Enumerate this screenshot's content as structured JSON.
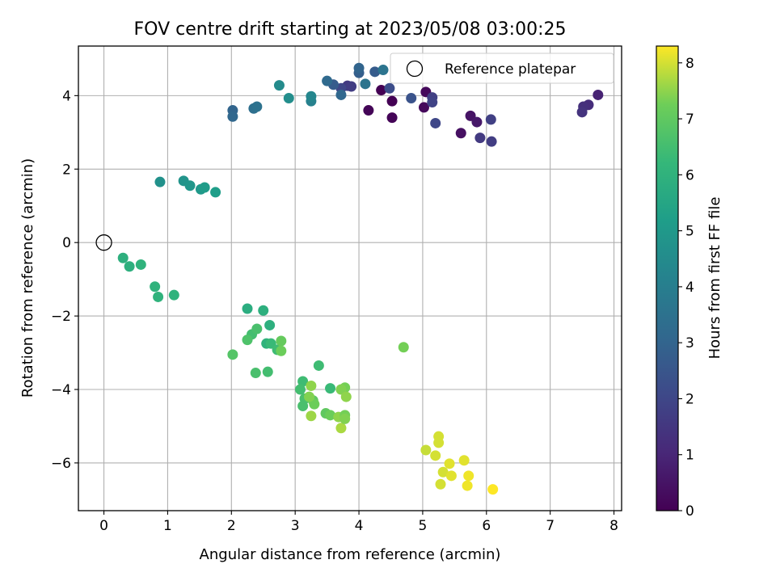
{
  "chart_data": {
    "type": "scatter",
    "title": "FOV centre drift starting at 2023/05/08 03:00:25",
    "xlabel": "Angular distance from reference (arcmin)",
    "ylabel": "Rotation from reference (arcmin)",
    "xlim": [
      -0.4,
      8.12
    ],
    "ylim": [
      -7.3,
      5.35
    ],
    "xticks": [
      0,
      1,
      2,
      3,
      4,
      5,
      6,
      7,
      8
    ],
    "yticks": [
      -6,
      -4,
      -2,
      0,
      2,
      4
    ],
    "grid": true,
    "legend": {
      "placement": "top-right",
      "entries": [
        {
          "label": "Reference platepar",
          "marker": "open-circle"
        }
      ]
    },
    "colorbar": {
      "label": "Hours from first FF file",
      "colormap": "viridis",
      "range": [
        0,
        8.3
      ],
      "ticks": [
        0,
        1,
        2,
        3,
        4,
        5,
        6,
        7,
        8
      ]
    },
    "reference": {
      "x": 0,
      "y": 0
    },
    "points": [
      {
        "x": 4.35,
        "y": 4.15,
        "h": 0.0
      },
      {
        "x": 4.52,
        "y": 3.85,
        "h": 0.0
      },
      {
        "x": 4.15,
        "y": 3.6,
        "h": 0.1
      },
      {
        "x": 4.52,
        "y": 3.4,
        "h": 0.1
      },
      {
        "x": 5.05,
        "y": 4.1,
        "h": 0.2
      },
      {
        "x": 5.02,
        "y": 3.68,
        "h": 0.2
      },
      {
        "x": 5.6,
        "y": 2.98,
        "h": 0.4
      },
      {
        "x": 5.75,
        "y": 3.45,
        "h": 0.5
      },
      {
        "x": 5.85,
        "y": 3.28,
        "h": 0.6
      },
      {
        "x": 7.75,
        "y": 4.02,
        "h": 0.9
      },
      {
        "x": 7.6,
        "y": 3.75,
        "h": 1.2
      },
      {
        "x": 7.52,
        "y": 3.7,
        "h": 1.3
      },
      {
        "x": 7.5,
        "y": 3.55,
        "h": 1.4
      },
      {
        "x": 5.9,
        "y": 2.85,
        "h": 1.6
      },
      {
        "x": 6.08,
        "y": 2.75,
        "h": 1.7
      },
      {
        "x": 6.07,
        "y": 3.35,
        "h": 1.8
      },
      {
        "x": 5.15,
        "y": 3.95,
        "h": 1.8
      },
      {
        "x": 5.15,
        "y": 3.82,
        "h": 1.9
      },
      {
        "x": 5.2,
        "y": 3.25,
        "h": 2.0
      },
      {
        "x": 3.82,
        "y": 4.27,
        "h": 1.6
      },
      {
        "x": 3.88,
        "y": 4.25,
        "h": 1.7
      },
      {
        "x": 3.72,
        "y": 4.2,
        "h": 2.0
      },
      {
        "x": 4.48,
        "y": 4.2,
        "h": 2.2
      },
      {
        "x": 4.82,
        "y": 3.93,
        "h": 2.4
      },
      {
        "x": 3.6,
        "y": 4.3,
        "h": 2.7
      },
      {
        "x": 4.25,
        "y": 4.65,
        "h": 2.7
      },
      {
        "x": 4.0,
        "y": 4.62,
        "h": 2.8
      },
      {
        "x": 4.0,
        "y": 4.75,
        "h": 3.0
      },
      {
        "x": 3.5,
        "y": 4.4,
        "h": 3.2
      },
      {
        "x": 3.72,
        "y": 4.02,
        "h": 3.1
      },
      {
        "x": 2.02,
        "y": 3.6,
        "h": 3.0
      },
      {
        "x": 2.02,
        "y": 3.43,
        "h": 3.1
      },
      {
        "x": 2.35,
        "y": 3.65,
        "h": 3.4
      },
      {
        "x": 2.4,
        "y": 3.7,
        "h": 3.5
      },
      {
        "x": 4.1,
        "y": 4.32,
        "h": 3.6
      },
      {
        "x": 4.38,
        "y": 4.7,
        "h": 3.6
      },
      {
        "x": 3.25,
        "y": 3.85,
        "h": 4.1
      },
      {
        "x": 3.25,
        "y": 3.98,
        "h": 4.3
      },
      {
        "x": 2.75,
        "y": 4.28,
        "h": 4.5
      },
      {
        "x": 2.9,
        "y": 3.93,
        "h": 4.6
      },
      {
        "x": 0.88,
        "y": 1.65,
        "h": 4.7
      },
      {
        "x": 1.25,
        "y": 1.68,
        "h": 4.8
      },
      {
        "x": 1.35,
        "y": 1.55,
        "h": 4.9
      },
      {
        "x": 1.52,
        "y": 1.45,
        "h": 5.0
      },
      {
        "x": 1.58,
        "y": 1.5,
        "h": 5.1
      },
      {
        "x": 1.75,
        "y": 1.37,
        "h": 5.2
      },
      {
        "x": 0.3,
        "y": -0.42,
        "h": 5.9
      },
      {
        "x": 0.4,
        "y": -0.65,
        "h": 5.9
      },
      {
        "x": 0.58,
        "y": -0.6,
        "h": 6.0
      },
      {
        "x": 0.8,
        "y": -1.2,
        "h": 6.0
      },
      {
        "x": 0.85,
        "y": -1.48,
        "h": 6.0
      },
      {
        "x": 1.1,
        "y": -1.43,
        "h": 6.0
      },
      {
        "x": 2.25,
        "y": -1.8,
        "h": 5.8
      },
      {
        "x": 2.5,
        "y": -1.85,
        "h": 5.9
      },
      {
        "x": 2.6,
        "y": -2.25,
        "h": 5.9
      },
      {
        "x": 2.55,
        "y": -2.75,
        "h": 6.0
      },
      {
        "x": 2.62,
        "y": -2.75,
        "h": 6.3
      },
      {
        "x": 2.72,
        "y": -2.92,
        "h": 6.4
      },
      {
        "x": 2.32,
        "y": -2.5,
        "h": 6.5
      },
      {
        "x": 2.4,
        "y": -2.35,
        "h": 6.6
      },
      {
        "x": 2.25,
        "y": -2.65,
        "h": 6.7
      },
      {
        "x": 2.02,
        "y": -3.05,
        "h": 6.8
      },
      {
        "x": 2.38,
        "y": -3.55,
        "h": 6.6
      },
      {
        "x": 2.57,
        "y": -3.52,
        "h": 6.5
      },
      {
        "x": 2.78,
        "y": -2.68,
        "h": 7.1
      },
      {
        "x": 2.78,
        "y": -2.95,
        "h": 7.2
      },
      {
        "x": 3.37,
        "y": -3.35,
        "h": 6.4
      },
      {
        "x": 3.55,
        "y": -3.97,
        "h": 6.3
      },
      {
        "x": 3.12,
        "y": -3.78,
        "h": 6.4
      },
      {
        "x": 3.08,
        "y": -4.0,
        "h": 6.5
      },
      {
        "x": 3.15,
        "y": -4.25,
        "h": 6.6
      },
      {
        "x": 3.12,
        "y": -4.45,
        "h": 6.6
      },
      {
        "x": 3.28,
        "y": -4.3,
        "h": 7.0
      },
      {
        "x": 3.3,
        "y": -4.4,
        "h": 7.2
      },
      {
        "x": 3.22,
        "y": -4.2,
        "h": 7.4
      },
      {
        "x": 3.25,
        "y": -3.9,
        "h": 7.5
      },
      {
        "x": 3.25,
        "y": -4.72,
        "h": 7.6
      },
      {
        "x": 3.48,
        "y": -4.65,
        "h": 7.0
      },
      {
        "x": 3.55,
        "y": -4.7,
        "h": 7.2
      },
      {
        "x": 3.68,
        "y": -4.75,
        "h": 7.5
      },
      {
        "x": 3.72,
        "y": -5.05,
        "h": 7.7
      },
      {
        "x": 3.78,
        "y": -3.95,
        "h": 7.3
      },
      {
        "x": 3.72,
        "y": -4.0,
        "h": 7.4
      },
      {
        "x": 3.8,
        "y": -4.2,
        "h": 7.5
      },
      {
        "x": 3.78,
        "y": -4.7,
        "h": 7.3
      },
      {
        "x": 3.78,
        "y": -4.8,
        "h": 7.4
      },
      {
        "x": 4.7,
        "y": -2.85,
        "h": 7.3
      },
      {
        "x": 5.05,
        "y": -5.65,
        "h": 7.9
      },
      {
        "x": 5.2,
        "y": -5.8,
        "h": 8.0
      },
      {
        "x": 5.25,
        "y": -5.28,
        "h": 8.0
      },
      {
        "x": 5.25,
        "y": -5.45,
        "h": 8.0
      },
      {
        "x": 5.32,
        "y": -6.25,
        "h": 8.0
      },
      {
        "x": 5.28,
        "y": -6.58,
        "h": 8.0
      },
      {
        "x": 5.42,
        "y": -6.02,
        "h": 8.1
      },
      {
        "x": 5.45,
        "y": -6.35,
        "h": 8.1
      },
      {
        "x": 5.65,
        "y": -5.93,
        "h": 8.1
      },
      {
        "x": 5.72,
        "y": -6.35,
        "h": 8.2
      },
      {
        "x": 5.7,
        "y": -6.62,
        "h": 8.2
      },
      {
        "x": 6.1,
        "y": -6.72,
        "h": 8.3
      }
    ]
  }
}
